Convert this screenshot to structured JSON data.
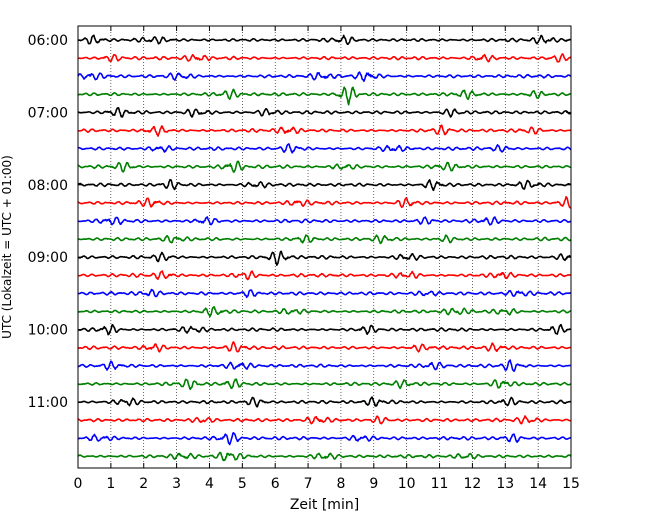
{
  "chart_data": {
    "type": "line",
    "title": "",
    "xlabel": "Zeit  [min]",
    "ylabel": "UTC (Lokalzeit = UTC + 01:00)",
    "xlim": [
      0,
      15
    ],
    "x_ticks": [
      "0",
      "1",
      "2",
      "3",
      "4",
      "5",
      "6",
      "7",
      "8",
      "9",
      "10",
      "11",
      "12",
      "13",
      "14",
      "15"
    ],
    "y_ticks": [
      "06:00",
      "07:00",
      "08:00",
      "09:00",
      "10:00",
      "11:00"
    ],
    "grid": {
      "x": true,
      "y": false,
      "style": "dotted"
    },
    "line_colors": [
      "#000000",
      "#ff0000",
      "#0000ff",
      "#008000"
    ],
    "traces": [
      {
        "start": "06:00",
        "events": [
          [
            0.5,
            0.9
          ],
          [
            2.3,
            0.8
          ],
          [
            8.1,
            0.8
          ],
          [
            14.2,
            0.9
          ]
        ]
      },
      {
        "start": "06:15",
        "events": [
          [
            1.0,
            0.8
          ],
          [
            3.6,
            0.9
          ],
          [
            12.3,
            0.8
          ],
          [
            14.6,
            0.7
          ]
        ]
      },
      {
        "start": "06:30",
        "events": [
          [
            0.4,
            0.9
          ],
          [
            3.1,
            0.8
          ],
          [
            7.4,
            0.9
          ],
          [
            8.8,
            1.0
          ]
        ]
      },
      {
        "start": "06:45",
        "events": [
          [
            4.6,
            0.9
          ],
          [
            8.2,
            2.0
          ],
          [
            11.8,
            0.7
          ],
          [
            13.9,
            0.7
          ]
        ]
      },
      {
        "start": "07:00",
        "events": [
          [
            1.2,
            0.8
          ],
          [
            3.6,
            0.9
          ],
          [
            5.8,
            0.9
          ],
          [
            11.4,
            0.9
          ]
        ]
      },
      {
        "start": "07:15",
        "events": [
          [
            2.4,
            0.9
          ],
          [
            6.4,
            0.9
          ],
          [
            11.1,
            0.8
          ],
          [
            13.8,
            0.7
          ]
        ]
      },
      {
        "start": "07:30",
        "events": [
          [
            2.5,
            0.9
          ],
          [
            6.5,
            0.8
          ],
          [
            9.6,
            0.7
          ],
          [
            12.9,
            0.7
          ]
        ]
      },
      {
        "start": "07:45",
        "events": [
          [
            1.4,
            1.0
          ],
          [
            4.7,
            1.2
          ],
          [
            8.1,
            0.8
          ],
          [
            11.2,
            0.7
          ]
        ]
      },
      {
        "start": "08:00",
        "events": [
          [
            2.8,
            0.9
          ],
          [
            5.4,
            0.7
          ],
          [
            10.8,
            1.0
          ],
          [
            13.7,
            0.8
          ]
        ]
      },
      {
        "start": "08:15",
        "events": [
          [
            2.2,
            0.9
          ],
          [
            6.7,
            0.7
          ],
          [
            10.0,
            1.0
          ],
          [
            14.9,
            1.1
          ]
        ]
      },
      {
        "start": "08:30",
        "events": [
          [
            1.0,
            0.8
          ],
          [
            3.9,
            0.8
          ],
          [
            10.6,
            0.8
          ],
          [
            12.5,
            0.7
          ]
        ]
      },
      {
        "start": "08:45",
        "events": [
          [
            2.9,
            0.8
          ],
          [
            6.9,
            0.7
          ],
          [
            9.3,
            0.7
          ],
          [
            11.2,
            0.7
          ]
        ]
      },
      {
        "start": "09:00",
        "events": [
          [
            2.6,
            0.8
          ],
          [
            6.1,
            1.5
          ],
          [
            10.0,
            0.9
          ],
          [
            14.9,
            0.9
          ]
        ]
      },
      {
        "start": "09:15",
        "events": [
          [
            2.6,
            0.8
          ],
          [
            5.1,
            1.0
          ],
          [
            10.0,
            0.9
          ],
          [
            12.9,
            0.7
          ]
        ]
      },
      {
        "start": "09:30",
        "events": [
          [
            2.2,
            0.8
          ],
          [
            5.2,
            0.8
          ],
          [
            10.6,
            0.8
          ],
          [
            13.4,
            0.8
          ]
        ]
      },
      {
        "start": "09:45",
        "events": [
          [
            4.1,
            0.8
          ],
          [
            6.5,
            0.7
          ],
          [
            11.5,
            0.9
          ],
          [
            13.0,
            0.8
          ]
        ]
      },
      {
        "start": "10:00",
        "events": [
          [
            0.9,
            1.0
          ],
          [
            3.5,
            0.8
          ],
          [
            8.8,
            0.8
          ],
          [
            14.6,
            0.9
          ]
        ]
      },
      {
        "start": "10:15",
        "events": [
          [
            2.3,
            0.9
          ],
          [
            4.8,
            1.1
          ],
          [
            10.4,
            0.7
          ],
          [
            12.7,
            0.8
          ]
        ]
      },
      {
        "start": "10:30",
        "events": [
          [
            1.0,
            0.8
          ],
          [
            4.9,
            0.9
          ],
          [
            10.8,
            0.8
          ],
          [
            13.2,
            1.1
          ]
        ]
      },
      {
        "start": "10:45",
        "events": [
          [
            3.4,
            0.9
          ],
          [
            4.7,
            0.9
          ],
          [
            9.9,
            0.7
          ],
          [
            12.9,
            1.2
          ]
        ]
      },
      {
        "start": "11:00",
        "events": [
          [
            1.5,
            0.8
          ],
          [
            5.4,
            1.0
          ],
          [
            9.0,
            0.8
          ],
          [
            13.1,
            0.8
          ]
        ]
      },
      {
        "start": "11:15",
        "events": [
          [
            3.8,
            0.9
          ],
          [
            7.3,
            0.8
          ],
          [
            9.2,
            0.8
          ],
          [
            13.7,
            0.8
          ]
        ]
      },
      {
        "start": "11:30",
        "events": [
          [
            0.7,
            0.8
          ],
          [
            4.6,
            1.2
          ],
          [
            8.6,
            0.9
          ],
          [
            13.2,
            0.9
          ]
        ]
      },
      {
        "start": "11:45",
        "events": [
          [
            3.2,
            0.8
          ],
          [
            4.6,
            1.3
          ],
          [
            7.5,
            0.8
          ],
          [
            11.8,
            0.8
          ]
        ]
      }
    ]
  }
}
